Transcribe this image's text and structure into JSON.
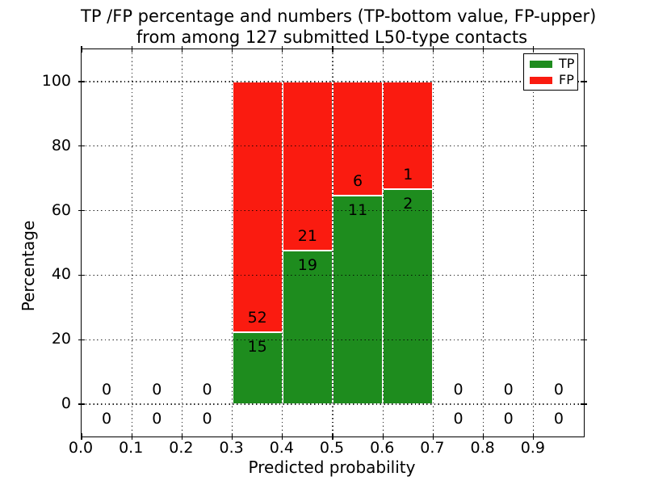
{
  "chart_data": {
    "type": "bar",
    "stacked": true,
    "title_lines": [
      "TP /FP percentage and numbers (TP-bottom value, FP-upper)",
      "from among 127 submitted L50-type contacts"
    ],
    "xlabel": "Predicted probability",
    "ylabel": "Percentage",
    "xlim": [
      0.0,
      1.0
    ],
    "ylim": [
      -10,
      110
    ],
    "x_ticks": [
      0.0,
      0.1,
      0.2,
      0.3,
      0.4,
      0.5,
      0.6,
      0.7,
      0.8,
      0.9
    ],
    "y_ticks": [
      0,
      20,
      40,
      60,
      80,
      100
    ],
    "grid": {
      "style": "dotted",
      "color": "#000000",
      "above_bars": true
    },
    "bins": [
      {
        "x0": 0.0,
        "x1": 0.1,
        "tp": 0,
        "fp": 0
      },
      {
        "x0": 0.1,
        "x1": 0.2,
        "tp": 0,
        "fp": 0
      },
      {
        "x0": 0.2,
        "x1": 0.3,
        "tp": 0,
        "fp": 0
      },
      {
        "x0": 0.3,
        "x1": 0.4,
        "tp": 15,
        "fp": 52
      },
      {
        "x0": 0.4,
        "x1": 0.5,
        "tp": 19,
        "fp": 21
      },
      {
        "x0": 0.5,
        "x1": 0.6,
        "tp": 11,
        "fp": 6
      },
      {
        "x0": 0.6,
        "x1": 0.7,
        "tp": 2,
        "fp": 1
      },
      {
        "x0": 0.7,
        "x1": 0.8,
        "tp": 0,
        "fp": 0
      },
      {
        "x0": 0.8,
        "x1": 0.9,
        "tp": 0,
        "fp": 0
      },
      {
        "x0": 0.9,
        "x1": 1.0,
        "tp": 0,
        "fp": 0
      }
    ],
    "legend": {
      "position": "upper right",
      "entries": [
        {
          "label": "TP",
          "color": "#1e8c1e"
        },
        {
          "label": "FP",
          "color": "#fa1b10"
        }
      ]
    },
    "colors": {
      "tp": "#1e8c1e",
      "fp": "#fa1b10",
      "bar_edge": "#ffffff",
      "spine": "#000000"
    }
  }
}
